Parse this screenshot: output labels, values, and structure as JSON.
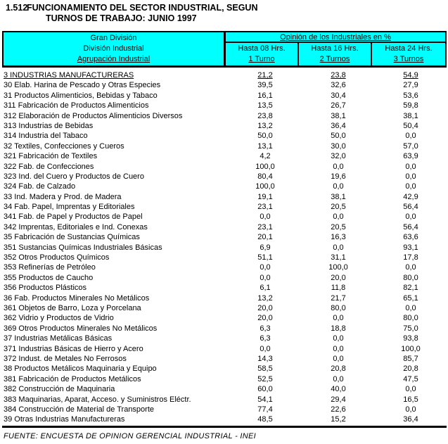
{
  "title": {
    "number": "1.512",
    "line1": "FUNCIONAMIENTO DEL SECTOR INDUSTRIAL, SEGUN",
    "line2": "TURNOS DE TRABAJO: JUNIO 1997"
  },
  "colors": {
    "header_bg": "#00FFFF",
    "border": "#000000",
    "text": "#000000"
  },
  "table": {
    "header": {
      "left_lines": [
        "Gran División",
        "División Industrial",
        "Agrupación Industrial"
      ],
      "group_title": "Opinión de los Industriales en %",
      "columns": [
        {
          "line1": "Hasta 08 Hrs.",
          "line2": "1 Turno"
        },
        {
          "line1": "Hasta 16 Hrs.",
          "line2": "2 Turnos"
        },
        {
          "line1": "Hasta 24 Hrs.",
          "line2": "3 Turnos"
        }
      ]
    },
    "rows": [
      {
        "label": "3 INDUSTRIAS MANUFACTURERAS",
        "values": [
          "21,2",
          "23,8",
          "54,9"
        ],
        "underline": true
      },
      {
        "label": "30 Elab. Harina de Pescado y Otras Especies",
        "values": [
          "39,5",
          "32,6",
          "27,9"
        ],
        "underline": false
      },
      {
        "label": "31 Productos Alimenticios, Bebidas y Tabaco",
        "values": [
          "16,1",
          "30,4",
          "53,6"
        ],
        "underline": false
      },
      {
        "label": "311 Fabricación de Productos Alimenticios",
        "values": [
          "13,5",
          "26,7",
          "59,8"
        ],
        "underline": false
      },
      {
        "label": "312 Elaboración de Productos Alimenticios Diversos",
        "values": [
          "23,8",
          "38,1",
          "38,1"
        ],
        "underline": false
      },
      {
        "label": "313 Industrias de Bebidas",
        "values": [
          "13,2",
          "36,4",
          "50,4"
        ],
        "underline": false
      },
      {
        "label": "314 Industria del Tabaco",
        "values": [
          "50,0",
          "50,0",
          "0,0"
        ],
        "underline": false
      },
      {
        "label": "32 Textiles, Confecciones y Cueros",
        "values": [
          "13,1",
          "30,0",
          "57,0"
        ],
        "underline": false
      },
      {
        "label": "321 Fabricación de Textiles",
        "values": [
          "4,2",
          "32,0",
          "63,9"
        ],
        "underline": false
      },
      {
        "label": "322 Fab. de Confecciones",
        "values": [
          "100,0",
          "0,0",
          "0,0"
        ],
        "underline": false
      },
      {
        "label": "323 Ind. del Cuero y Productos de Cuero",
        "values": [
          "80,4",
          "19,6",
          "0,0"
        ],
        "underline": false
      },
      {
        "label": "324 Fab. de Calzado",
        "values": [
          "100,0",
          "0,0",
          "0,0"
        ],
        "underline": false
      },
      {
        "label": "33 Ind. Madera y Prod. de Madera",
        "values": [
          "19,1",
          "38,1",
          "42,9"
        ],
        "underline": false
      },
      {
        "label": "34 Fab. Papel, Imprentas y Editoriales",
        "values": [
          "23,1",
          "20,5",
          "56,4"
        ],
        "underline": false
      },
      {
        "label": "341 Fab. de Papel y Productos de Papel",
        "values": [
          "0,0",
          "0,0",
          "0,0"
        ],
        "underline": false
      },
      {
        "label": "342 Imprentas, Editoriales e Ind. Conexas",
        "values": [
          "23,1",
          "20,5",
          "56,4"
        ],
        "underline": false
      },
      {
        "label": "35 Fabricación de Sustancias Químicas",
        "values": [
          "20,1",
          "16,3",
          "63,6"
        ],
        "underline": false
      },
      {
        "label": "351 Sustancias Químicas Industriales Básicas",
        "values": [
          "6,9",
          "0,0",
          "93,1"
        ],
        "underline": false
      },
      {
        "label": "352 Otros Productos Químicos",
        "values": [
          "51,1",
          "31,1",
          "17,8"
        ],
        "underline": false
      },
      {
        "label": "353 Refinerías de Petróleo",
        "values": [
          "0,0",
          "100,0",
          "0,0"
        ],
        "underline": false
      },
      {
        "label": "355 Productos de Caucho",
        "values": [
          "0,0",
          "20,0",
          "80,0"
        ],
        "underline": false
      },
      {
        "label": "356 Productos Plásticos",
        "values": [
          "6,1",
          "11,8",
          "82,1"
        ],
        "underline": false
      },
      {
        "label": "36 Fab. Productos Minerales No Metálicos",
        "values": [
          "13,2",
          "21,7",
          "65,1"
        ],
        "underline": false
      },
      {
        "label": "361 Objetos de Barro, Loza y Porcelana",
        "values": [
          "20,0",
          "80,0",
          "0,0"
        ],
        "underline": false
      },
      {
        "label": "362 Vidrio y Productos de Vidrio",
        "values": [
          "20,0",
          "0,0",
          "80,0"
        ],
        "underline": false
      },
      {
        "label": "369 Otros Productos Minerales No Metálicos",
        "values": [
          "6,3",
          "18,8",
          "75,0"
        ],
        "underline": false
      },
      {
        "label": "37 Industrias Metálicas Básicas",
        "values": [
          "6,3",
          "0,0",
          "93,8"
        ],
        "underline": false
      },
      {
        "label": "371 Industrias Básicas de Hierro y Acero",
        "values": [
          "0,0",
          "0,0",
          "100,0"
        ],
        "underline": false
      },
      {
        "label": "372 Indust. de Metales No Ferrosos",
        "values": [
          "14,3",
          "0,0",
          "85,7"
        ],
        "underline": false
      },
      {
        "label": "38 Productos Metálicos Maquinaria y Equipo",
        "values": [
          "58,5",
          "20,8",
          "20,8"
        ],
        "underline": false
      },
      {
        "label": "381 Fabricación de Productos Metálicos",
        "values": [
          "52,5",
          "0,0",
          "47,5"
        ],
        "underline": false
      },
      {
        "label": "382 Construcción de Maquinaria",
        "values": [
          "60,0",
          "40,0",
          "0,0"
        ],
        "underline": false
      },
      {
        "label": "383 Maquinarias, Aparat, Acceso. y Suministros Eléctr.",
        "values": [
          "54,1",
          "29,4",
          "16,5"
        ],
        "underline": false
      },
      {
        "label": "384 Construcción de Material de Transporte",
        "values": [
          "77,4",
          "22,6",
          "0,0"
        ],
        "underline": false
      },
      {
        "label": "39 Otras Industrias Manufactureras",
        "values": [
          "48,5",
          "15,2",
          "36,4"
        ],
        "underline": false
      }
    ]
  },
  "footer": "FUENTE: ENCUESTA DE OPINION GERENCIAL INDUSTRIAL - INEI"
}
